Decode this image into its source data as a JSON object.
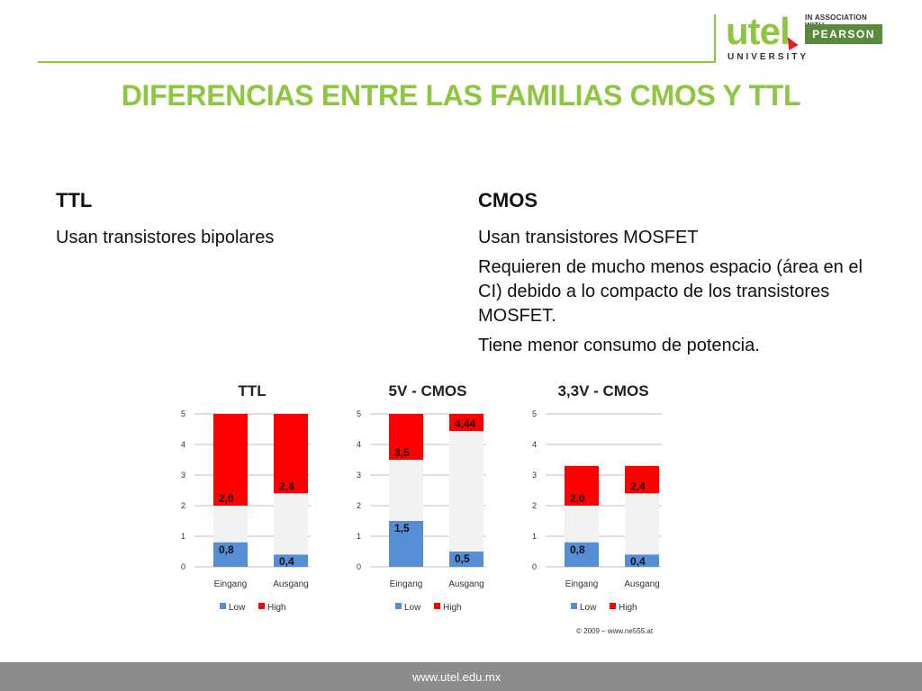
{
  "header": {
    "logo_text": "utel",
    "logo_sub": "UNIVERSITY",
    "assoc_text": "IN ASSOCIATION WITH",
    "pearson_text": "PEARSON",
    "accent_color": "#8dc63f"
  },
  "title": "DIFERENCIAS ENTRE LAS FAMILIAS CMOS Y TTL",
  "ttl": {
    "heading": "TTL",
    "bullets": [
      "Usan transistores bipolares"
    ]
  },
  "cmos": {
    "heading": "CMOS",
    "bullets": [
      "Usan transistores MOSFET",
      "Requieren de mucho menos espacio (área en el CI) debido a lo compacto de los transistores MOSFET.",
      "Tiene menor consumo de potencia."
    ]
  },
  "chart_data": [
    {
      "type": "bar",
      "title": "TTL",
      "categories": [
        "Eingang",
        "Ausgang"
      ],
      "ylim": [
        0,
        5
      ],
      "yticks": [
        "0",
        "1",
        "2",
        "3",
        "4",
        "5"
      ],
      "series": [
        {
          "name": "Low",
          "color": "#558ed5",
          "values": [
            0.8,
            0.4
          ],
          "labels": [
            "0,8",
            "0,4"
          ]
        },
        {
          "name": "High",
          "color": "#ff0000",
          "values": [
            2.0,
            2.4
          ],
          "labels": [
            "2,0",
            "2,4"
          ]
        }
      ],
      "top": [
        5,
        5
      ],
      "middle_color": "#f2f2f2",
      "legend": "bottom"
    },
    {
      "type": "bar",
      "title": "5V - CMOS",
      "categories": [
        "Eingang",
        "Ausgang"
      ],
      "ylim": [
        0,
        5
      ],
      "yticks": [
        "0",
        "1",
        "2",
        "3",
        "4",
        "5"
      ],
      "series": [
        {
          "name": "Low",
          "color": "#558ed5",
          "values": [
            1.5,
            0.5
          ],
          "labels": [
            "1,5",
            "0,5"
          ]
        },
        {
          "name": "High",
          "color": "#ff0000",
          "values": [
            3.5,
            4.44
          ],
          "labels": [
            "3,5",
            "4,44"
          ]
        }
      ],
      "top": [
        5,
        5
      ],
      "middle_color": "#f2f2f2",
      "legend": "bottom"
    },
    {
      "type": "bar",
      "title": "3,3V - CMOS",
      "categories": [
        "Eingang",
        "Ausgang"
      ],
      "ylim": [
        0,
        5
      ],
      "yticks": [
        "0",
        "1",
        "2",
        "3",
        "4",
        "5"
      ],
      "series": [
        {
          "name": "Low",
          "color": "#558ed5",
          "values": [
            0.8,
            0.4
          ],
          "labels": [
            "0,8",
            "0,4"
          ]
        },
        {
          "name": "High",
          "color": "#ff0000",
          "values": [
            2.0,
            2.4
          ],
          "labels": [
            "2,0",
            "2,4"
          ]
        }
      ],
      "top": [
        3.3,
        3.3
      ],
      "middle_color": "#f2f2f2",
      "legend": "bottom"
    }
  ],
  "copyright": "© 2009 – www.ne555.at",
  "footer": {
    "url": "www.utel.edu.mx"
  }
}
